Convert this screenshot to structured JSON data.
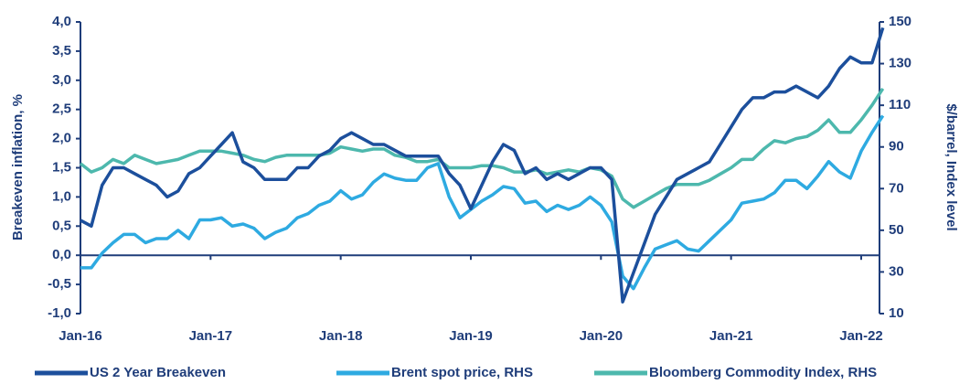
{
  "chart_data": {
    "type": "line",
    "y_label": "Breakeven inflation, %",
    "y2_label": "$/barrel, Index level",
    "categories": [
      "Jan-16",
      null,
      null,
      null,
      null,
      null,
      null,
      null,
      null,
      null,
      null,
      null,
      "Jan-17",
      null,
      null,
      null,
      null,
      null,
      null,
      null,
      null,
      null,
      null,
      null,
      "Jan-18",
      null,
      null,
      null,
      null,
      null,
      null,
      null,
      null,
      null,
      null,
      null,
      "Jan-19",
      null,
      null,
      null,
      null,
      null,
      null,
      null,
      null,
      null,
      null,
      null,
      "Jan-20",
      null,
      null,
      null,
      null,
      null,
      null,
      null,
      null,
      null,
      null,
      null,
      "Jan-21",
      null,
      null,
      null,
      null,
      null,
      null,
      null,
      null,
      null,
      null,
      null,
      "Jan-22",
      null,
      null
    ],
    "series": [
      {
        "name": "US 2 Year Breakeven",
        "color": "#1c4f9c",
        "axis": "y",
        "values": [
          0.6,
          0.5,
          1.2,
          1.5,
          1.5,
          1.4,
          1.3,
          1.2,
          1.0,
          1.1,
          1.4,
          1.5,
          1.7,
          1.9,
          2.1,
          1.6,
          1.5,
          1.3,
          1.3,
          1.3,
          1.5,
          1.5,
          1.7,
          1.8,
          2.0,
          2.1,
          2.0,
          1.9,
          1.9,
          1.8,
          1.7,
          1.7,
          1.7,
          1.7,
          1.4,
          1.2,
          0.8,
          1.2,
          1.6,
          1.9,
          1.8,
          1.4,
          1.5,
          1.3,
          1.4,
          1.3,
          1.4,
          1.5,
          1.5,
          1.3,
          -0.8,
          -0.3,
          0.2,
          0.7,
          1.0,
          1.3,
          1.4,
          1.5,
          1.6,
          1.9,
          2.2,
          2.5,
          2.7,
          2.7,
          2.8,
          2.8,
          2.9,
          2.8,
          2.7,
          2.9,
          3.2,
          3.4,
          3.3,
          3.3,
          3.9
        ]
      },
      {
        "name": "Brent spot price, RHS",
        "color": "#2eaae1",
        "axis": "y2",
        "values": [
          32,
          32,
          39,
          44,
          48,
          48,
          44,
          46,
          46,
          50,
          46,
          55,
          55,
          56,
          52,
          53,
          51,
          46,
          49,
          51,
          56,
          58,
          62,
          64,
          69,
          65,
          67,
          73,
          77,
          75,
          74,
          74,
          80,
          82,
          66,
          56,
          60,
          64,
          67,
          71,
          70,
          63,
          64,
          59,
          62,
          60,
          62,
          66,
          62,
          54,
          28,
          22,
          32,
          41,
          43,
          45,
          41,
          40,
          45,
          50,
          55,
          63,
          64,
          65,
          68,
          74,
          74,
          70,
          76,
          83,
          78,
          75,
          88,
          97,
          105
        ]
      },
      {
        "name": "Bloomberg Commodity Index, RHS",
        "color": "#4db8ad",
        "axis": "y2",
        "values": [
          82,
          78,
          80,
          84,
          82,
          86,
          84,
          82,
          83,
          84,
          86,
          88,
          88,
          88,
          87,
          86,
          84,
          83,
          85,
          86,
          86,
          86,
          86,
          87,
          90,
          89,
          88,
          89,
          89,
          86,
          85,
          83,
          83,
          84,
          80,
          80,
          80,
          81,
          81,
          80,
          78,
          78,
          79,
          77,
          78,
          79,
          78,
          80,
          79,
          76,
          65,
          61,
          64,
          67,
          70,
          72,
          72,
          72,
          74,
          77,
          80,
          84,
          84,
          89,
          93,
          92,
          94,
          95,
          98,
          103,
          97,
          97,
          103,
          110,
          118
        ]
      }
    ],
    "ylim": [
      -1.0,
      4.0
    ],
    "yticks": [
      {
        "value": -1.0,
        "label": "-1,0"
      },
      {
        "value": -0.5,
        "label": "-0,5"
      },
      {
        "value": 0.0,
        "label": "0,0"
      },
      {
        "value": 0.5,
        "label": "0,5"
      },
      {
        "value": 1.0,
        "label": "1,0"
      },
      {
        "value": 1.5,
        "label": "1,5"
      },
      {
        "value": 2.0,
        "label": "2,0"
      },
      {
        "value": 2.5,
        "label": "2,5"
      },
      {
        "value": 3.0,
        "label": "3,0"
      },
      {
        "value": 3.5,
        "label": "3,5"
      },
      {
        "value": 4.0,
        "label": "4,0"
      }
    ],
    "y2lim": [
      10,
      150
    ],
    "y2ticks": [
      10,
      30,
      50,
      70,
      90,
      110,
      130,
      150
    ],
    "grid": false,
    "legend": "bottom"
  }
}
